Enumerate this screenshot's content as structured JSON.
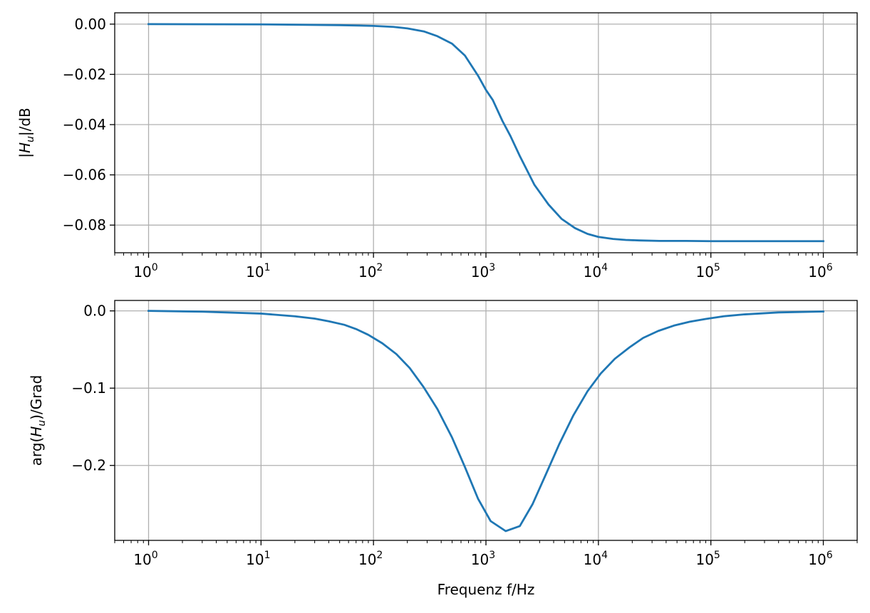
{
  "chart_data": [
    {
      "type": "line",
      "xscale": "log",
      "xlim": [
        0.5,
        2000000
      ],
      "ylim": [
        -0.091,
        0.0045
      ],
      "grid": true,
      "xlabel": "",
      "ylabel": "|H_u|/dB",
      "ylabel_parts": {
        "pre": "|",
        "var": "H",
        "sub": "u",
        "post": "|/dB"
      },
      "x_ticks": [
        {
          "value": 1,
          "base": "10",
          "exp": "0"
        },
        {
          "value": 10,
          "base": "10",
          "exp": "1"
        },
        {
          "value": 100,
          "base": "10",
          "exp": "2"
        },
        {
          "value": 1000,
          "base": "10",
          "exp": "3"
        },
        {
          "value": 10000,
          "base": "10",
          "exp": "4"
        },
        {
          "value": 100000,
          "base": "10",
          "exp": "5"
        },
        {
          "value": 1000000,
          "base": "10",
          "exp": "6"
        }
      ],
      "y_ticks": [
        {
          "value": 0.0,
          "label": "0.00"
        },
        {
          "value": -0.02,
          "label": "−0.02"
        },
        {
          "value": -0.04,
          "label": "−0.04"
        },
        {
          "value": -0.06,
          "label": "−0.06"
        },
        {
          "value": -0.08,
          "label": "−0.08"
        }
      ],
      "color": "#1f77b4",
      "series": [
        {
          "x": [
            1,
            10,
            50,
            100,
            150,
            200,
            280,
            370,
            500,
            650,
            850,
            1000,
            1150,
            1400,
            1650,
            2000,
            2700,
            3600,
            4700,
            6200,
            8000,
            10000,
            13500,
            17500,
            23000,
            35000,
            60000,
            100000,
            1000000
          ],
          "y": [
            0.0,
            -0.0001,
            -0.0004,
            -0.0007,
            -0.0011,
            -0.0017,
            -0.0029,
            -0.0048,
            -0.0078,
            -0.0125,
            -0.0205,
            -0.0262,
            -0.0302,
            -0.0385,
            -0.0445,
            -0.0525,
            -0.064,
            -0.0718,
            -0.0775,
            -0.0812,
            -0.0835,
            -0.0847,
            -0.0855,
            -0.0859,
            -0.0861,
            -0.0863,
            -0.0863,
            -0.0864,
            -0.0864
          ]
        }
      ]
    },
    {
      "type": "line",
      "xscale": "log",
      "xlim": [
        0.5,
        2000000
      ],
      "ylim": [
        -0.297,
        0.0135
      ],
      "grid": true,
      "xlabel": "Frequenz f/Hz",
      "ylabel": "arg(H_u)/Grad",
      "ylabel_parts": {
        "pre": "arg(",
        "var": "H",
        "sub": "u",
        "post": ")/Grad"
      },
      "x_ticks": [
        {
          "value": 1,
          "base": "10",
          "exp": "0"
        },
        {
          "value": 10,
          "base": "10",
          "exp": "1"
        },
        {
          "value": 100,
          "base": "10",
          "exp": "2"
        },
        {
          "value": 1000,
          "base": "10",
          "exp": "3"
        },
        {
          "value": 10000,
          "base": "10",
          "exp": "4"
        },
        {
          "value": 100000,
          "base": "10",
          "exp": "5"
        },
        {
          "value": 1000000,
          "base": "10",
          "exp": "6"
        }
      ],
      "y_ticks": [
        {
          "value": 0.0,
          "label": "0.0"
        },
        {
          "value": -0.1,
          "label": "−0.1"
        },
        {
          "value": -0.2,
          "label": "−0.2"
        }
      ],
      "color": "#1f77b4",
      "series": [
        {
          "x": [
            1,
            3,
            10,
            20,
            30,
            40,
            55,
            70,
            90,
            120,
            160,
            210,
            280,
            370,
            500,
            650,
            850,
            1100,
            1500,
            2000,
            2600,
            3400,
            4500,
            6000,
            8000,
            10500,
            14000,
            19000,
            25000,
            34000,
            47000,
            65000,
            90000,
            130000,
            200000,
            400000,
            1000000
          ],
          "y": [
            0.0,
            -0.001,
            -0.0035,
            -0.007,
            -0.01,
            -0.0135,
            -0.018,
            -0.0235,
            -0.031,
            -0.042,
            -0.056,
            -0.074,
            -0.099,
            -0.127,
            -0.164,
            -0.202,
            -0.243,
            -0.272,
            -0.285,
            -0.2785,
            -0.25,
            -0.212,
            -0.172,
            -0.135,
            -0.104,
            -0.081,
            -0.062,
            -0.047,
            -0.035,
            -0.026,
            -0.019,
            -0.014,
            -0.0105,
            -0.007,
            -0.0045,
            -0.002,
            -0.0008
          ]
        }
      ]
    }
  ]
}
